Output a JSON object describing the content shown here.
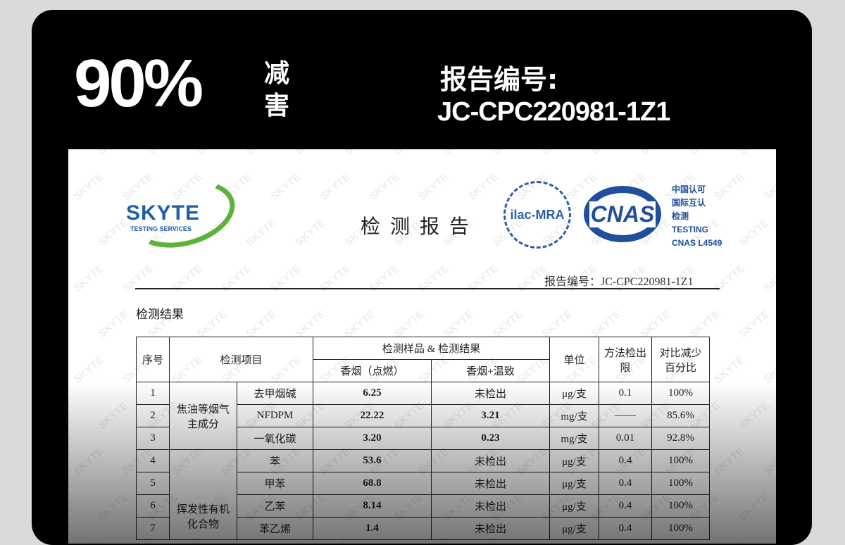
{
  "banner": {
    "percent": "90%",
    "reduction_label": "减害",
    "report_label": "报告编号:",
    "report_number": "JC-CPC220981-1Z1"
  },
  "document": {
    "company_name": "SKYTE",
    "company_sub": "TESTING SERVICES",
    "watermark": "SKYTE",
    "title": "检测报告",
    "ilac_logo": "ilac-MRA",
    "cnas_logo": "CNAS",
    "cnas_text": [
      "中国认可",
      "国际互认",
      "检测",
      "TESTING",
      "CNAS L4549"
    ],
    "report_no": "报告编号：JC-CPC220981-1Z1",
    "section_title": "检测结果",
    "table": {
      "headers": {
        "no": "序号",
        "item": "检测项目",
        "sample_group": "检测样品 & 检测结果",
        "sample1": "香烟（点燃）",
        "sample2": "香烟+温致",
        "unit": "单位",
        "limit": "方法检出限",
        "percent": "对比减少百分比"
      },
      "groups": [
        "焦油等烟气主成分",
        "挥发性有机化合物"
      ],
      "rows": [
        {
          "no": "1",
          "item": "去甲烟碱",
          "s1": "6.25",
          "s2": "未检出",
          "unit": "μg/支",
          "limit": "0.1",
          "pct": "100%"
        },
        {
          "no": "2",
          "item": "NFDPM",
          "s1": "22.22",
          "s2": "3.21",
          "unit": "mg/支",
          "limit": "——",
          "pct": "85.6%"
        },
        {
          "no": "3",
          "item": "一氧化碳",
          "s1": "3.20",
          "s2": "0.23",
          "unit": "mg/支",
          "limit": "0.01",
          "pct": "92.8%"
        },
        {
          "no": "4",
          "item": "苯",
          "s1": "53.6",
          "s2": "未检出",
          "unit": "μg/支",
          "limit": "0.4",
          "pct": "100%"
        },
        {
          "no": "5",
          "item": "甲苯",
          "s1": "68.8",
          "s2": "未检出",
          "unit": "μg/支",
          "limit": "0.4",
          "pct": "100%"
        },
        {
          "no": "6",
          "item": "乙苯",
          "s1": "8.14",
          "s2": "未检出",
          "unit": "μg/支",
          "limit": "0.4",
          "pct": "100%"
        },
        {
          "no": "7",
          "item": "苯乙烯",
          "s1": "1.4",
          "s2": "未检出",
          "unit": "μg/支",
          "limit": "0.4",
          "pct": "100%"
        }
      ]
    }
  }
}
